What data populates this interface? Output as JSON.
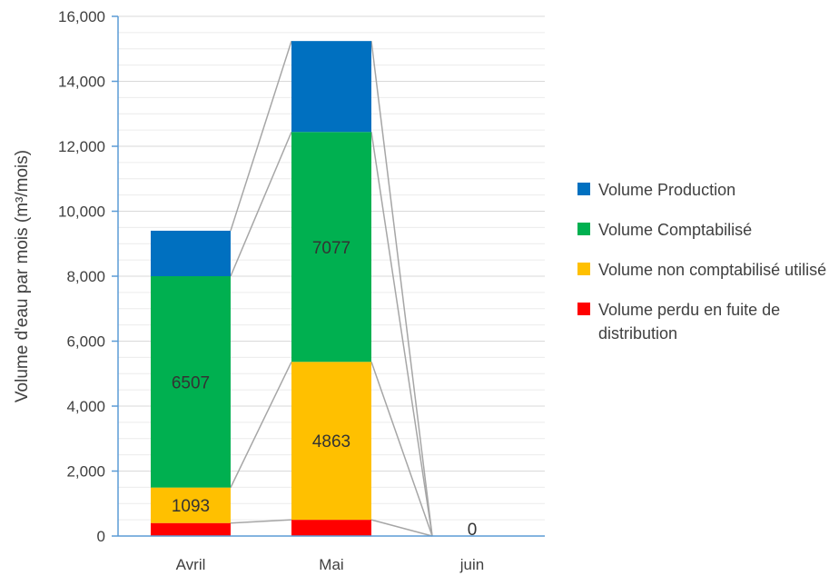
{
  "chart_data": {
    "type": "bar",
    "stacked": true,
    "categories": [
      "Avril",
      "Mai",
      "juin"
    ],
    "ylabel": "Volume d'eau par mois (m³/mois)",
    "ylim": [
      0,
      16000
    ],
    "yticks": [
      0,
      2000,
      4000,
      6000,
      8000,
      10000,
      12000,
      14000,
      16000
    ],
    "ytick_labels": [
      "0",
      "2,000",
      "4,000",
      "6,000",
      "8,000",
      "10,000",
      "12,000",
      "14,000",
      "16,000"
    ],
    "grid": true,
    "legend_position": "right",
    "series_lines": true,
    "series": [
      {
        "name": "Volume perdu en fuite de distribution",
        "color": "#FF0000",
        "values": [
          400,
          500,
          0
        ],
        "labels": [
          "",
          "",
          ""
        ]
      },
      {
        "name": "Volume non comptabilisé utilisé",
        "color": "#FFC000",
        "values": [
          1093,
          4863,
          0
        ],
        "labels": [
          "1093",
          "4863",
          ""
        ]
      },
      {
        "name": "Volume Comptabilisé",
        "color": "#00B050",
        "values": [
          6507,
          7077,
          0
        ],
        "labels": [
          "6507",
          "7077",
          "0"
        ]
      },
      {
        "name": "Volume Production",
        "color": "#0070C0",
        "values": [
          1400,
          2800,
          0
        ],
        "labels": [
          "",
          "",
          ""
        ]
      }
    ]
  }
}
